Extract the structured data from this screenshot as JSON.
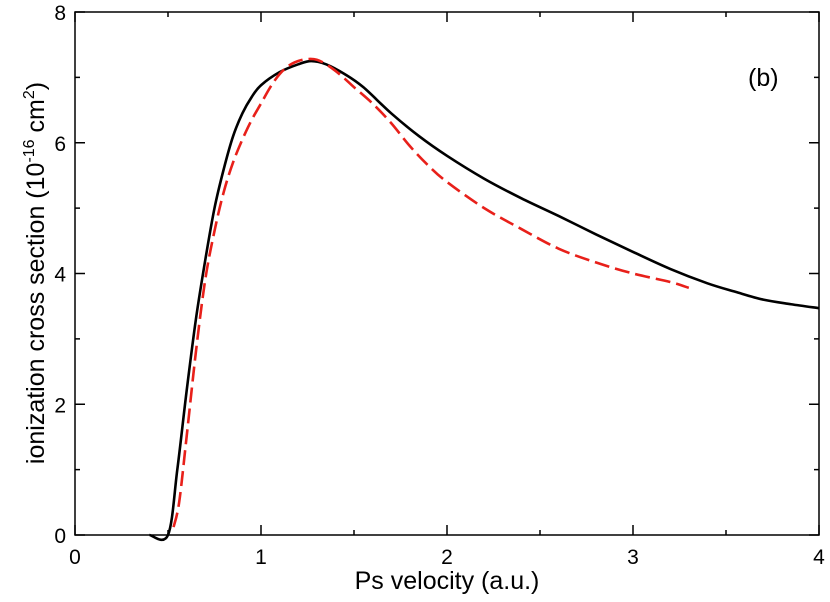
{
  "chart_data": {
    "type": "line",
    "title": "",
    "panel_label": "(b)",
    "xlabel": "Ps velocity (a.u.)",
    "ylabel": {
      "prefix": "ionization cross section (10",
      "exp1": "-16",
      "middle": " cm",
      "exp2": "2",
      "suffix": ")"
    },
    "xlim": [
      0,
      4
    ],
    "ylim": [
      0,
      8
    ],
    "x_ticks": [
      0,
      1,
      2,
      3,
      4
    ],
    "y_ticks": [
      0,
      2,
      4,
      6,
      8
    ],
    "x_tick_labels": [
      "0",
      "1",
      "2",
      "3",
      "4"
    ],
    "y_tick_labels": [
      "0",
      "2",
      "4",
      "6",
      "8"
    ],
    "grid": false,
    "series": [
      {
        "name": "solid",
        "color": "#000000",
        "style": "solid",
        "x": [
          0.4,
          0.5,
          0.55,
          0.6,
          0.65,
          0.7,
          0.75,
          0.8,
          0.85,
          0.9,
          0.95,
          1.0,
          1.1,
          1.2,
          1.27,
          1.35,
          1.45,
          1.55,
          1.7,
          1.85,
          2.0,
          2.2,
          2.4,
          2.6,
          2.8,
          3.0,
          3.2,
          3.4,
          3.55,
          3.7,
          3.85,
          4.0
        ],
        "y": [
          0.0,
          0.0,
          1.0,
          2.2,
          3.3,
          4.2,
          5.0,
          5.6,
          6.1,
          6.45,
          6.7,
          6.88,
          7.08,
          7.2,
          7.25,
          7.2,
          7.05,
          6.85,
          6.45,
          6.1,
          5.8,
          5.45,
          5.15,
          4.88,
          4.6,
          4.33,
          4.07,
          3.85,
          3.72,
          3.6,
          3.53,
          3.47
        ]
      },
      {
        "name": "dashed",
        "color": "#e8201a",
        "style": "dashed",
        "x": [
          0.53,
          0.56,
          0.6,
          0.65,
          0.7,
          0.75,
          0.8,
          0.85,
          0.9,
          0.95,
          1.0,
          1.05,
          1.1,
          1.15,
          1.2,
          1.25,
          1.3,
          1.35,
          1.4,
          1.45,
          1.5,
          1.6,
          1.7,
          1.8,
          1.9,
          2.0,
          2.2,
          2.4,
          2.6,
          2.8,
          3.0,
          3.2,
          3.3
        ],
        "y": [
          0.12,
          0.5,
          1.5,
          2.8,
          3.9,
          4.65,
          5.25,
          5.7,
          6.05,
          6.35,
          6.6,
          6.85,
          7.05,
          7.18,
          7.25,
          7.28,
          7.27,
          7.2,
          7.1,
          6.98,
          6.85,
          6.6,
          6.3,
          5.95,
          5.65,
          5.4,
          5.0,
          4.68,
          4.38,
          4.17,
          4.0,
          3.87,
          3.78
        ]
      }
    ]
  }
}
